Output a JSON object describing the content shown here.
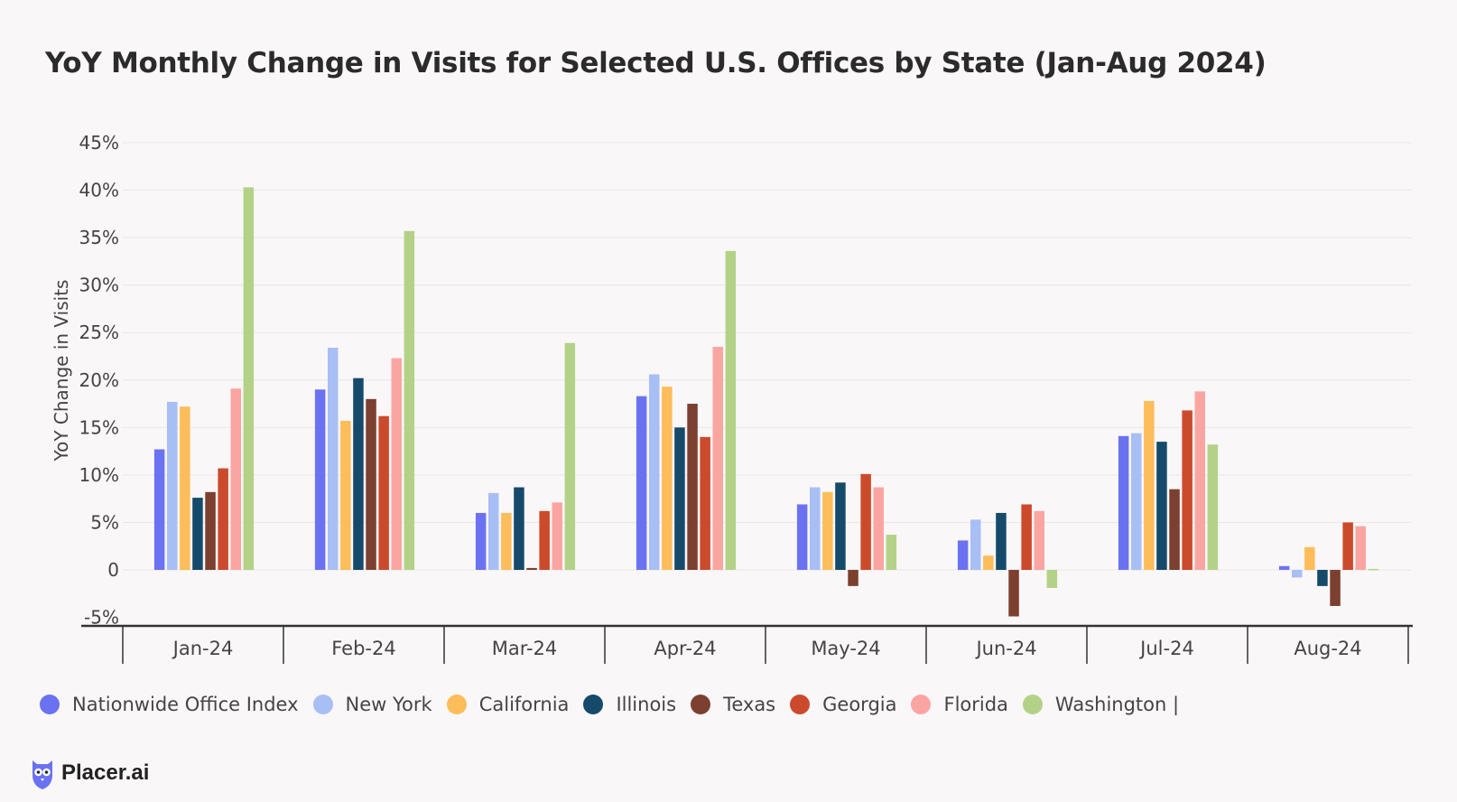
{
  "title": "YoY Monthly Change in Visits for Selected U.S. Offices by State (Jan-Aug 2024)",
  "brand": "Placer.ai",
  "chart_data": {
    "type": "bar",
    "ylabel": "YoY Change in Visits",
    "ylim": [
      -5,
      45
    ],
    "yticks": [
      -5,
      0,
      5,
      10,
      15,
      20,
      25,
      30,
      35,
      40,
      45
    ],
    "ytick_labels": [
      "-5%",
      "0",
      "5%",
      "10%",
      "15%",
      "20%",
      "25%",
      "30%",
      "35%",
      "40%",
      "45%"
    ],
    "grid": true,
    "legend_position": "bottom",
    "categories": [
      "Jan-24",
      "Feb-24",
      "Mar-24",
      "Apr-24",
      "May-24",
      "Jun-24",
      "Jul-24",
      "Aug-24"
    ],
    "series": [
      {
        "name": "Nationwide Office Index",
        "color": "#6b72f2",
        "values": [
          12.7,
          19.0,
          6.0,
          18.3,
          6.9,
          3.1,
          14.1,
          0.4
        ]
      },
      {
        "name": "New York",
        "color": "#a8bff5",
        "values": [
          17.7,
          23.4,
          8.1,
          20.6,
          8.7,
          5.3,
          14.4,
          -0.8
        ]
      },
      {
        "name": "California",
        "color": "#fcbd5a",
        "values": [
          17.2,
          15.7,
          6.0,
          19.3,
          8.2,
          1.5,
          17.8,
          2.4
        ]
      },
      {
        "name": "Illinois",
        "color": "#154a6b",
        "values": [
          7.6,
          20.2,
          8.7,
          15.0,
          9.2,
          6.0,
          13.5,
          -1.7
        ]
      },
      {
        "name": "Texas",
        "color": "#7c4030",
        "values": [
          8.2,
          18.0,
          0.2,
          17.5,
          -1.7,
          -4.9,
          8.5,
          -3.8
        ]
      },
      {
        "name": "Georgia",
        "color": "#cc4a2c",
        "values": [
          10.7,
          16.2,
          6.2,
          14.0,
          10.1,
          6.9,
          16.8,
          5.0
        ]
      },
      {
        "name": "Florida",
        "color": "#fba5a2",
        "values": [
          19.1,
          22.3,
          7.1,
          23.5,
          8.7,
          6.2,
          18.8,
          4.6
        ]
      },
      {
        "name": "Washington",
        "color": "#b3d287",
        "values": [
          40.3,
          35.7,
          23.9,
          33.6,
          3.7,
          -1.9,
          13.2,
          0.1
        ]
      }
    ]
  },
  "legend_suffix": "|"
}
